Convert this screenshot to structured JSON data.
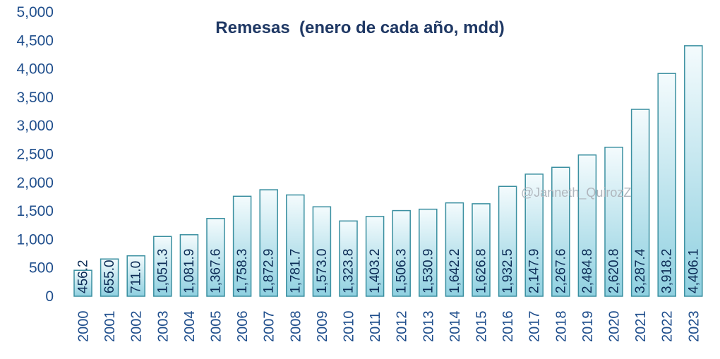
{
  "watermark": "@Janneth_QuirozZ",
  "colors": {
    "bar_top": "#f4fbfd",
    "bar_bottom": "#8fd0e0",
    "bar_border": "#3a8fa0",
    "text": "#1f4e8c",
    "title": "#1f3864"
  },
  "chart_data": {
    "type": "bar",
    "title": "Remesas  (enero de cada año, mdd)",
    "xlabel": "",
    "ylabel": "",
    "ylim": [
      0,
      5000
    ],
    "yticks": [
      "0",
      "500",
      "1,000",
      "1,500",
      "2,000",
      "2,500",
      "3,000",
      "3,500",
      "4,000",
      "4,500",
      "5,000"
    ],
    "grid": false,
    "categories": [
      "2000",
      "2001",
      "2002",
      "2003",
      "2004",
      "2005",
      "2006",
      "2007",
      "2008",
      "2009",
      "2010",
      "2011",
      "2012",
      "2013",
      "2014",
      "2015",
      "2016",
      "2017",
      "2018",
      "2019",
      "2020",
      "2021",
      "2022",
      "2023"
    ],
    "values": [
      456.2,
      655.0,
      711.0,
      1051.3,
      1081.9,
      1367.6,
      1758.3,
      1872.9,
      1781.7,
      1573.0,
      1323.8,
      1403.2,
      1506.3,
      1530.9,
      1642.2,
      1626.8,
      1932.5,
      2147.9,
      2267.6,
      2484.8,
      2620.8,
      3287.4,
      3918.2,
      4406.1
    ],
    "data_labels": [
      "456.2",
      "655.0",
      "711.0",
      "1,051.3",
      "1,081.9",
      "1,367.6",
      "1,758.3",
      "1,872.9",
      "1,781.7",
      "1,573.0",
      "1,323.8",
      "1,403.2",
      "1,506.3",
      "1,530.9",
      "1,642.2",
      "1,626.8",
      "1,932.5",
      "2,147.9",
      "2,267.6",
      "2,484.8",
      "2,620.8",
      "3,287.4",
      "3,918.2",
      "4,406.1"
    ]
  }
}
